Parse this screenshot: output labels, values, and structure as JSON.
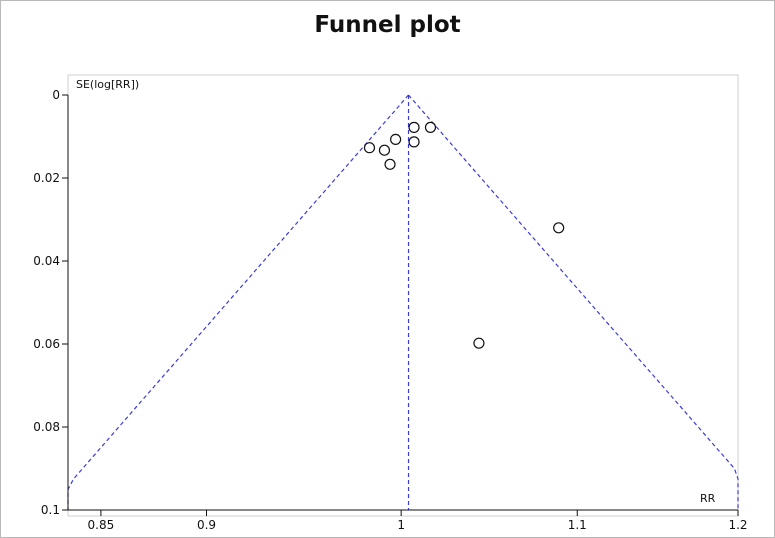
{
  "chart_data": {
    "type": "scatter",
    "title": "Funnel plot",
    "xlabel": "RR",
    "ylabel": "SE(log[RR])",
    "xlim": [
      0.835,
      1.2
    ],
    "ylim": [
      0,
      0.1
    ],
    "y_inverted": true,
    "x_scale": "log",
    "xticks": [
      0.85,
      0.9,
      1,
      1.1,
      1.2
    ],
    "xtick_labels": [
      "0.85",
      "0.9",
      "1",
      "1.1",
      "1.2"
    ],
    "yticks": [
      0,
      0.02,
      0.04,
      0.06,
      0.08,
      0.1
    ],
    "ytick_labels": [
      "0",
      "0.02",
      "0.04",
      "0.06",
      "0.08",
      "0.1"
    ],
    "grid": false,
    "pooled_rr": 1.004,
    "points": [
      {
        "x": 0.983,
        "y": 0.0127
      },
      {
        "x": 0.991,
        "y": 0.0133
      },
      {
        "x": 0.994,
        "y": 0.0167
      },
      {
        "x": 0.997,
        "y": 0.0107
      },
      {
        "x": 1.007,
        "y": 0.0078
      },
      {
        "x": 1.007,
        "y": 0.0113
      },
      {
        "x": 1.016,
        "y": 0.0078
      },
      {
        "x": 1.043,
        "y": 0.0598
      },
      {
        "x": 1.089,
        "y": 0.032
      }
    ],
    "colors": {
      "points": "#111111",
      "guides": "#3a3adf",
      "axes": "#111111",
      "plot_border": "#cfcfcf"
    }
  }
}
